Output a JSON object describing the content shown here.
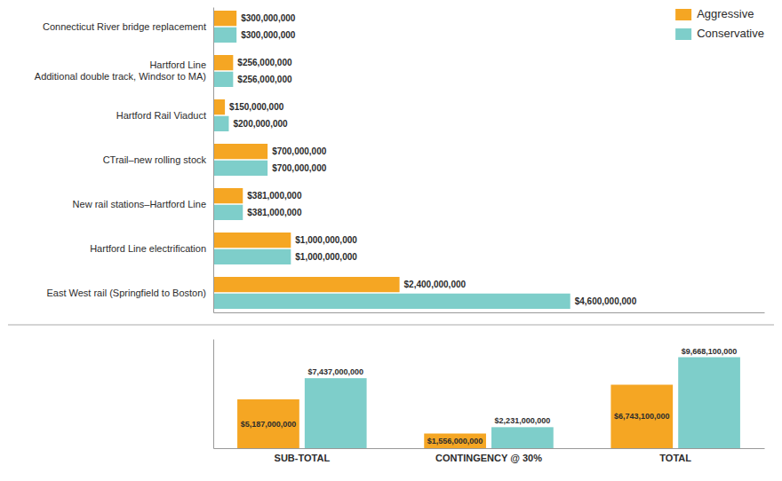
{
  "chart_data": [
    {
      "type": "bar",
      "orientation": "horizontal",
      "categories": [
        "Connecticut River bridge replacement",
        "Hartford Line\nAdditional double track, Windsor to MA)",
        "Hartford Rail Viaduct",
        "CTrail–new rolling stock",
        "New rail stations–Hartford Line",
        "Hartford Line electrification",
        "East West rail (Springfield to Boston)"
      ],
      "series": [
        {
          "name": "Aggressive",
          "color": "#F5A623",
          "values": [
            300000000,
            256000000,
            150000000,
            700000000,
            381000000,
            1000000000,
            2400000000
          ],
          "value_labels": [
            "$300,000,000",
            "$256,000,000",
            "$150,000,000",
            "$700,000,000",
            "$381,000,000",
            "$1,000,000,000",
            "$2,400,000,000"
          ]
        },
        {
          "name": "Conservative",
          "color": "#7ECECA",
          "values": [
            300000000,
            256000000,
            200000000,
            700000000,
            381000000,
            1000000000,
            4600000000
          ],
          "value_labels": [
            "$300,000,000",
            "$256,000,000",
            "$200,000,000",
            "$700,000,000",
            "$381,000,000",
            "$1,000,000,000",
            "$4,600,000,000"
          ]
        }
      ],
      "xlim": [
        0,
        7100000000
      ],
      "data_labels": true,
      "legend": "upper right",
      "tick_labels": "y"
    },
    {
      "type": "bar",
      "categories": [
        "SUB-TOTAL",
        "CONTINGENCY @ 30%",
        "TOTAL"
      ],
      "series": [
        {
          "name": "Aggressive",
          "color": "#F5A623",
          "values": [
            5187000000,
            1556000000,
            6743100000
          ],
          "value_labels": [
            "$5,187,000,000",
            "$1,556,000,000",
            "$6,743,100,000"
          ]
        },
        {
          "name": "Conservative",
          "color": "#7ECECA",
          "values": [
            7437000000,
            2231000000,
            9668100000
          ],
          "value_labels": [
            "$7,437,000,000",
            "$2,231,000,000",
            "$9,668,100,000"
          ]
        }
      ],
      "ylim": [
        0,
        11601720000
      ],
      "data_labels": true,
      "tick_labels": "x"
    }
  ]
}
